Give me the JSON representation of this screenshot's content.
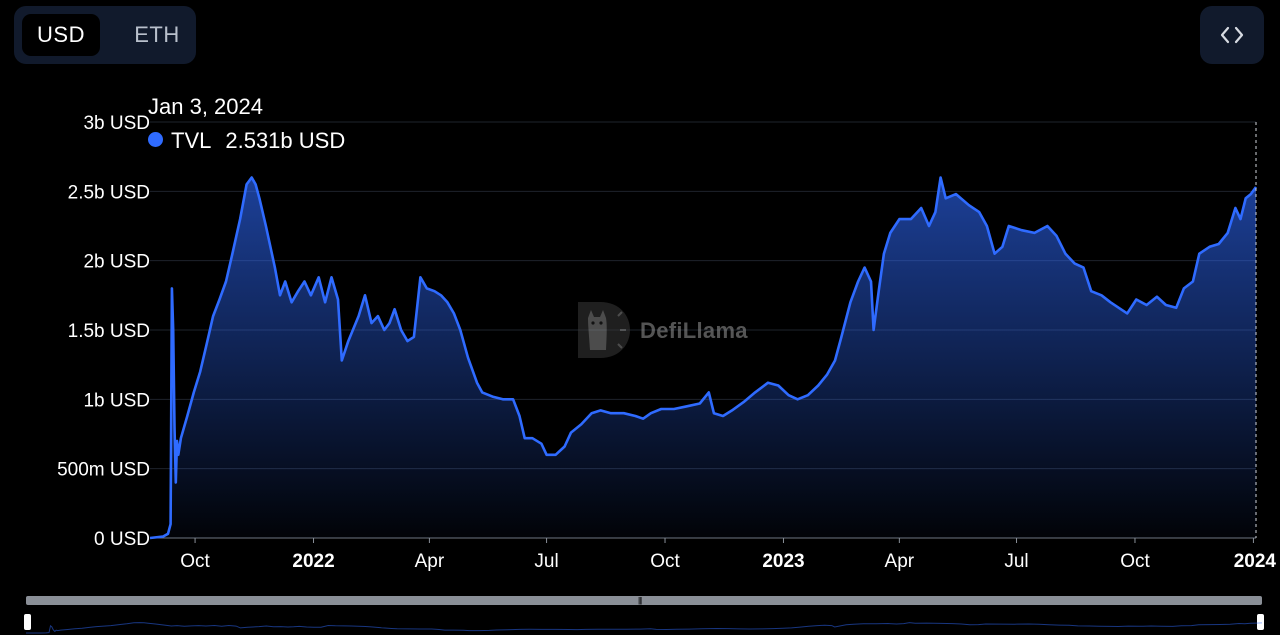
{
  "toggle": {
    "usd_label": "USD",
    "eth_label": "ETH"
  },
  "embed": {
    "icon": "code-icon"
  },
  "tooltip": {
    "date": "Jan 3, 2024",
    "series": "TVL",
    "value": "2.531b USD",
    "dot_color": "#2f6bff"
  },
  "watermark": {
    "text": "DefiLlama",
    "icon": "llama-logo-icon"
  },
  "brush": {
    "grip_icon": "grip-icon",
    "range": [
      0,
      1
    ]
  },
  "chart_data": {
    "type": "area",
    "series": [
      {
        "name": "TVL",
        "color": "#2f6bff",
        "points": [
          [
            "2021-08-27",
            0
          ],
          [
            "2021-09-06",
            0.01
          ],
          [
            "2021-09-10",
            0.03
          ],
          [
            "2021-09-12",
            0.1
          ],
          [
            "2021-09-13",
            1.8
          ],
          [
            "2021-09-14",
            1.5
          ],
          [
            "2021-09-15",
            0.8
          ],
          [
            "2021-09-16",
            0.4
          ],
          [
            "2021-09-17",
            0.7
          ],
          [
            "2021-09-18",
            0.6
          ],
          [
            "2021-09-20",
            0.72
          ],
          [
            "2021-09-25",
            0.88
          ],
          [
            "2021-09-30",
            1.05
          ],
          [
            "2021-10-05",
            1.2
          ],
          [
            "2021-10-10",
            1.4
          ],
          [
            "2021-10-15",
            1.6
          ],
          [
            "2021-10-20",
            1.72
          ],
          [
            "2021-10-25",
            1.85
          ],
          [
            "2021-10-30",
            2.05
          ],
          [
            "2021-11-05",
            2.3
          ],
          [
            "2021-11-10",
            2.55
          ],
          [
            "2021-11-14",
            2.6
          ],
          [
            "2021-11-17",
            2.55
          ],
          [
            "2021-11-20",
            2.45
          ],
          [
            "2021-11-25",
            2.25
          ],
          [
            "2021-12-02",
            1.95
          ],
          [
            "2021-12-06",
            1.75
          ],
          [
            "2021-12-10",
            1.85
          ],
          [
            "2021-12-15",
            1.7
          ],
          [
            "2021-12-20",
            1.78
          ],
          [
            "2021-12-25",
            1.85
          ],
          [
            "2021-12-30",
            1.75
          ],
          [
            "2022-01-05",
            1.88
          ],
          [
            "2022-01-10",
            1.7
          ],
          [
            "2022-01-15",
            1.88
          ],
          [
            "2022-01-20",
            1.72
          ],
          [
            "2022-01-23",
            1.28
          ],
          [
            "2022-01-28",
            1.42
          ],
          [
            "2022-02-05",
            1.6
          ],
          [
            "2022-02-10",
            1.75
          ],
          [
            "2022-02-15",
            1.55
          ],
          [
            "2022-02-20",
            1.6
          ],
          [
            "2022-02-25",
            1.5
          ],
          [
            "2022-03-01",
            1.55
          ],
          [
            "2022-03-05",
            1.65
          ],
          [
            "2022-03-10",
            1.5
          ],
          [
            "2022-03-15",
            1.42
          ],
          [
            "2022-03-20",
            1.45
          ],
          [
            "2022-03-25",
            1.88
          ],
          [
            "2022-03-30",
            1.8
          ],
          [
            "2022-04-05",
            1.78
          ],
          [
            "2022-04-10",
            1.75
          ],
          [
            "2022-04-15",
            1.7
          ],
          [
            "2022-04-20",
            1.62
          ],
          [
            "2022-04-25",
            1.5
          ],
          [
            "2022-05-01",
            1.3
          ],
          [
            "2022-05-08",
            1.12
          ],
          [
            "2022-05-12",
            1.05
          ],
          [
            "2022-05-20",
            1.02
          ],
          [
            "2022-05-28",
            1.0
          ],
          [
            "2022-06-05",
            1.0
          ],
          [
            "2022-06-10",
            0.88
          ],
          [
            "2022-06-14",
            0.72
          ],
          [
            "2022-06-20",
            0.72
          ],
          [
            "2022-06-27",
            0.68
          ],
          [
            "2022-07-01",
            0.6
          ],
          [
            "2022-07-08",
            0.6
          ],
          [
            "2022-07-15",
            0.66
          ],
          [
            "2022-07-20",
            0.76
          ],
          [
            "2022-07-28",
            0.82
          ],
          [
            "2022-08-05",
            0.9
          ],
          [
            "2022-08-12",
            0.92
          ],
          [
            "2022-08-20",
            0.9
          ],
          [
            "2022-08-30",
            0.9
          ],
          [
            "2022-09-08",
            0.88
          ],
          [
            "2022-09-14",
            0.86
          ],
          [
            "2022-09-20",
            0.9
          ],
          [
            "2022-09-28",
            0.93
          ],
          [
            "2022-10-08",
            0.93
          ],
          [
            "2022-10-18",
            0.95
          ],
          [
            "2022-10-28",
            0.97
          ],
          [
            "2022-11-04",
            1.05
          ],
          [
            "2022-11-08",
            0.9
          ],
          [
            "2022-11-15",
            0.88
          ],
          [
            "2022-11-22",
            0.92
          ],
          [
            "2022-12-01",
            0.98
          ],
          [
            "2022-12-10",
            1.05
          ],
          [
            "2022-12-20",
            1.12
          ],
          [
            "2022-12-28",
            1.1
          ],
          [
            "2023-01-05",
            1.03
          ],
          [
            "2023-01-12",
            1.0
          ],
          [
            "2023-01-20",
            1.03
          ],
          [
            "2023-01-28",
            1.1
          ],
          [
            "2023-02-04",
            1.18
          ],
          [
            "2023-02-10",
            1.28
          ],
          [
            "2023-02-15",
            1.45
          ],
          [
            "2023-02-22",
            1.7
          ],
          [
            "2023-02-28",
            1.85
          ],
          [
            "2023-03-05",
            1.95
          ],
          [
            "2023-03-10",
            1.85
          ],
          [
            "2023-03-12",
            1.5
          ],
          [
            "2023-03-16",
            1.78
          ],
          [
            "2023-03-20",
            2.05
          ],
          [
            "2023-03-25",
            2.2
          ],
          [
            "2023-04-01",
            2.3
          ],
          [
            "2023-04-10",
            2.3
          ],
          [
            "2023-04-18",
            2.38
          ],
          [
            "2023-04-24",
            2.25
          ],
          [
            "2023-04-29",
            2.35
          ],
          [
            "2023-05-03",
            2.6
          ],
          [
            "2023-05-07",
            2.45
          ],
          [
            "2023-05-15",
            2.48
          ],
          [
            "2023-05-25",
            2.4
          ],
          [
            "2023-06-02",
            2.35
          ],
          [
            "2023-06-08",
            2.25
          ],
          [
            "2023-06-14",
            2.05
          ],
          [
            "2023-06-20",
            2.1
          ],
          [
            "2023-06-25",
            2.25
          ],
          [
            "2023-07-05",
            2.22
          ],
          [
            "2023-07-15",
            2.2
          ],
          [
            "2023-07-25",
            2.25
          ],
          [
            "2023-08-01",
            2.18
          ],
          [
            "2023-08-08",
            2.05
          ],
          [
            "2023-08-15",
            1.98
          ],
          [
            "2023-08-22",
            1.95
          ],
          [
            "2023-08-28",
            1.78
          ],
          [
            "2023-09-05",
            1.75
          ],
          [
            "2023-09-12",
            1.7
          ],
          [
            "2023-09-20",
            1.65
          ],
          [
            "2023-09-25",
            1.62
          ],
          [
            "2023-10-02",
            1.72
          ],
          [
            "2023-10-10",
            1.68
          ],
          [
            "2023-10-18",
            1.74
          ],
          [
            "2023-10-25",
            1.68
          ],
          [
            "2023-11-02",
            1.66
          ],
          [
            "2023-11-08",
            1.8
          ],
          [
            "2023-11-15",
            1.85
          ],
          [
            "2023-11-20",
            2.05
          ],
          [
            "2023-11-28",
            2.1
          ],
          [
            "2023-12-05",
            2.12
          ],
          [
            "2023-12-12",
            2.2
          ],
          [
            "2023-12-18",
            2.38
          ],
          [
            "2023-12-22",
            2.3
          ],
          [
            "2023-12-26",
            2.45
          ],
          [
            "2023-12-30",
            2.48
          ],
          [
            "2024-01-03",
            2.531
          ]
        ]
      }
    ],
    "x_range": [
      "2021-08-27",
      "2024-01-03"
    ],
    "ylim": [
      0,
      3
    ],
    "y_ticks": [
      {
        "value": 0,
        "label": "0 USD"
      },
      {
        "value": 0.5,
        "label": "500m USD"
      },
      {
        "value": 1,
        "label": "1b USD"
      },
      {
        "value": 1.5,
        "label": "1.5b USD"
      },
      {
        "value": 2,
        "label": "2b USD"
      },
      {
        "value": 2.5,
        "label": "2.5b USD"
      },
      {
        "value": 3,
        "label": "3b USD"
      }
    ],
    "x_ticks": [
      {
        "date": "2021-10-01",
        "label": "Oct",
        "bold": false
      },
      {
        "date": "2022-01-01",
        "label": "2022",
        "bold": true
      },
      {
        "date": "2022-04-01",
        "label": "Apr",
        "bold": false
      },
      {
        "date": "2022-07-01",
        "label": "Jul",
        "bold": false
      },
      {
        "date": "2022-10-01",
        "label": "Oct",
        "bold": false
      },
      {
        "date": "2023-01-01",
        "label": "2023",
        "bold": true
      },
      {
        "date": "2023-04-01",
        "label": "Apr",
        "bold": false
      },
      {
        "date": "2023-07-01",
        "label": "Jul",
        "bold": false
      },
      {
        "date": "2023-10-01",
        "label": "Oct",
        "bold": false
      },
      {
        "date": "2024-01-01",
        "label": "2024",
        "bold": true
      }
    ],
    "grid": true,
    "crosshair_date": "2024-01-03"
  }
}
